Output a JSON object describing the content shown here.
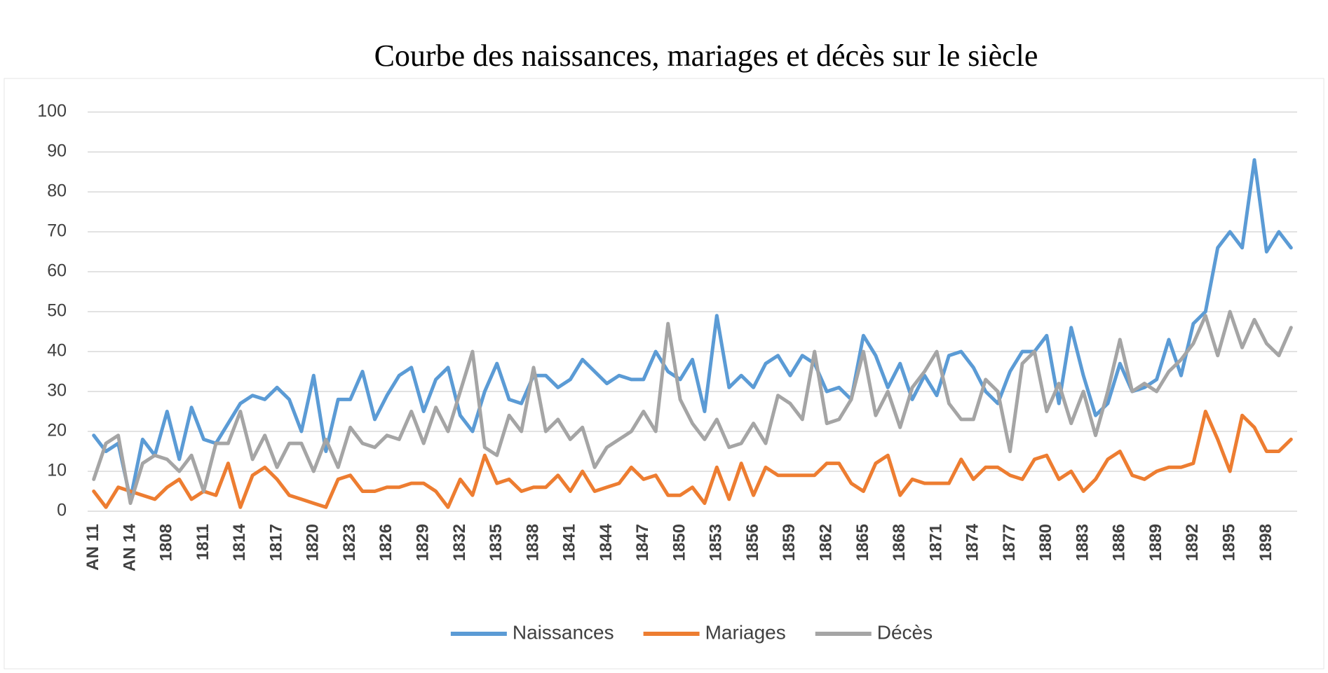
{
  "chart_data": {
    "type": "line",
    "title": "Courbe des naissances, mariages et décès sur le siècle",
    "categories": [
      "AN 11",
      null,
      null,
      "AN 14",
      null,
      null,
      "1808",
      null,
      null,
      "1811",
      null,
      null,
      "1814",
      null,
      null,
      "1817",
      null,
      null,
      "1820",
      null,
      null,
      "1823",
      null,
      null,
      "1826",
      null,
      null,
      "1829",
      null,
      null,
      "1832",
      null,
      null,
      "1835",
      null,
      null,
      "1838",
      null,
      null,
      "1841",
      null,
      null,
      "1844",
      null,
      null,
      "1847",
      null,
      null,
      "1850",
      null,
      null,
      "1853",
      null,
      null,
      "1856",
      null,
      null,
      "1859",
      null,
      null,
      "1862",
      null,
      null,
      "1865",
      null,
      null,
      "1868",
      null,
      null,
      "1871",
      null,
      null,
      "1874",
      null,
      null,
      "1877",
      null,
      null,
      "1880",
      null,
      null,
      "1883",
      null,
      null,
      "1886",
      null,
      null,
      "1889",
      null,
      null,
      "1892",
      null,
      null,
      "1895",
      null,
      null,
      "1898",
      null,
      null
    ],
    "series": [
      {
        "name": "Naissances",
        "color": "#5b9bd5",
        "values": [
          19,
          15,
          17,
          3,
          18,
          14,
          25,
          13,
          26,
          18,
          17,
          22,
          27,
          29,
          28,
          31,
          28,
          20,
          34,
          15,
          28,
          28,
          35,
          23,
          29,
          34,
          36,
          25,
          33,
          36,
          24,
          20,
          30,
          37,
          28,
          27,
          34,
          34,
          31,
          33,
          38,
          35,
          32,
          34,
          33,
          33,
          40,
          35,
          33,
          38,
          25,
          49,
          31,
          34,
          31,
          37,
          39,
          34,
          39,
          37,
          30,
          31,
          28,
          44,
          39,
          31,
          37,
          28,
          34,
          29,
          39,
          40,
          36,
          30,
          27,
          35,
          40,
          40,
          44,
          27,
          46,
          34,
          24,
          27,
          37,
          30,
          31,
          33,
          43,
          34,
          47,
          50,
          66,
          70,
          66,
          88,
          65,
          70,
          66
        ]
      },
      {
        "name": "Mariages",
        "color": "#ed7d31",
        "values": [
          5,
          1,
          6,
          5,
          4,
          3,
          6,
          8,
          3,
          5,
          4,
          12,
          1,
          9,
          11,
          8,
          4,
          3,
          2,
          1,
          8,
          9,
          5,
          5,
          6,
          6,
          7,
          7,
          5,
          1,
          8,
          4,
          14,
          7,
          8,
          5,
          6,
          6,
          9,
          5,
          10,
          5,
          6,
          7,
          11,
          8,
          9,
          4,
          4,
          6,
          2,
          11,
          3,
          12,
          4,
          11,
          9,
          9,
          9,
          9,
          12,
          12,
          7,
          5,
          12,
          14,
          4,
          8,
          7,
          7,
          7,
          13,
          8,
          11,
          11,
          9,
          8,
          13,
          14,
          8,
          10,
          5,
          8,
          13,
          15,
          9,
          8,
          10,
          11,
          11,
          12,
          25,
          18,
          10,
          24,
          21,
          15,
          15,
          18
        ]
      },
      {
        "name": "Décès",
        "color": "#a5a5a5",
        "values": [
          8,
          17,
          19,
          2,
          12,
          14,
          13,
          10,
          14,
          5,
          17,
          17,
          25,
          13,
          19,
          11,
          17,
          17,
          10,
          18,
          11,
          21,
          17,
          16,
          19,
          18,
          25,
          17,
          26,
          20,
          30,
          40,
          16,
          14,
          24,
          20,
          36,
          20,
          23,
          18,
          21,
          11,
          16,
          18,
          20,
          25,
          20,
          47,
          28,
          22,
          18,
          23,
          16,
          17,
          22,
          17,
          29,
          27,
          23,
          40,
          22,
          23,
          28,
          40,
          24,
          30,
          21,
          31,
          35,
          40,
          27,
          23,
          23,
          33,
          30,
          15,
          37,
          40,
          25,
          32,
          22,
          30,
          19,
          30,
          43,
          30,
          32,
          30,
          35,
          38,
          42,
          49,
          39,
          50,
          41,
          48,
          42,
          39,
          46
        ]
      }
    ],
    "ylim": [
      0,
      100
    ],
    "yticks": [
      0,
      10,
      20,
      30,
      40,
      50,
      60,
      70,
      80,
      90,
      100
    ],
    "grid": true,
    "legend": "bottom"
  }
}
